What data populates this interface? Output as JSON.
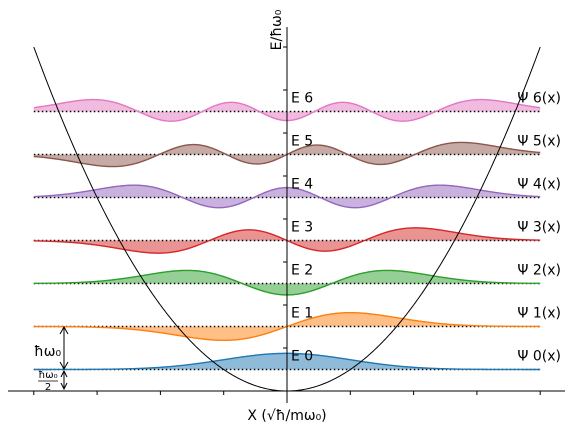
{
  "chart_data": {
    "type": "area",
    "title": "",
    "xlabel": "X (√ħ/mω₀)",
    "ylabel": "E/ħω₀",
    "xlim": [
      -4.0,
      4.4
    ],
    "ylim": [
      -0.5,
      8.1
    ],
    "grid": false,
    "legend": "none",
    "potential": {
      "function": "V(x) = x^2 / 2",
      "color": "#000000"
    },
    "series": [
      {
        "n": 0,
        "level": 0.5,
        "level_label": "E 0",
        "psi_label": "Ψ 0(x)",
        "color": "#1f77b4"
      },
      {
        "n": 1,
        "level": 1.5,
        "level_label": "E 1",
        "psi_label": "Ψ 1(x)",
        "color": "#ff7f0e"
      },
      {
        "n": 2,
        "level": 2.5,
        "level_label": "E 2",
        "psi_label": "Ψ 2(x)",
        "color": "#2ca02c"
      },
      {
        "n": 3,
        "level": 3.5,
        "level_label": "E 3",
        "psi_label": "Ψ 3(x)",
        "color": "#d62728"
      },
      {
        "n": 4,
        "level": 4.5,
        "level_label": "E 4",
        "psi_label": "Ψ 4(x)",
        "color": "#9467bd"
      },
      {
        "n": 5,
        "level": 5.5,
        "level_label": "E 5",
        "psi_label": "Ψ 5(x)",
        "color": "#8c564b"
      },
      {
        "n": 6,
        "level": 6.5,
        "level_label": "E 6",
        "psi_label": "Ψ 6(x)",
        "color": "#e377c2"
      }
    ],
    "annotations": [
      {
        "text": "ħω₀",
        "from": 0.5,
        "to": 1.5
      },
      {
        "text_num": "ħω₀",
        "text_den": "2",
        "from": 0.0,
        "to": 0.5
      }
    ]
  }
}
